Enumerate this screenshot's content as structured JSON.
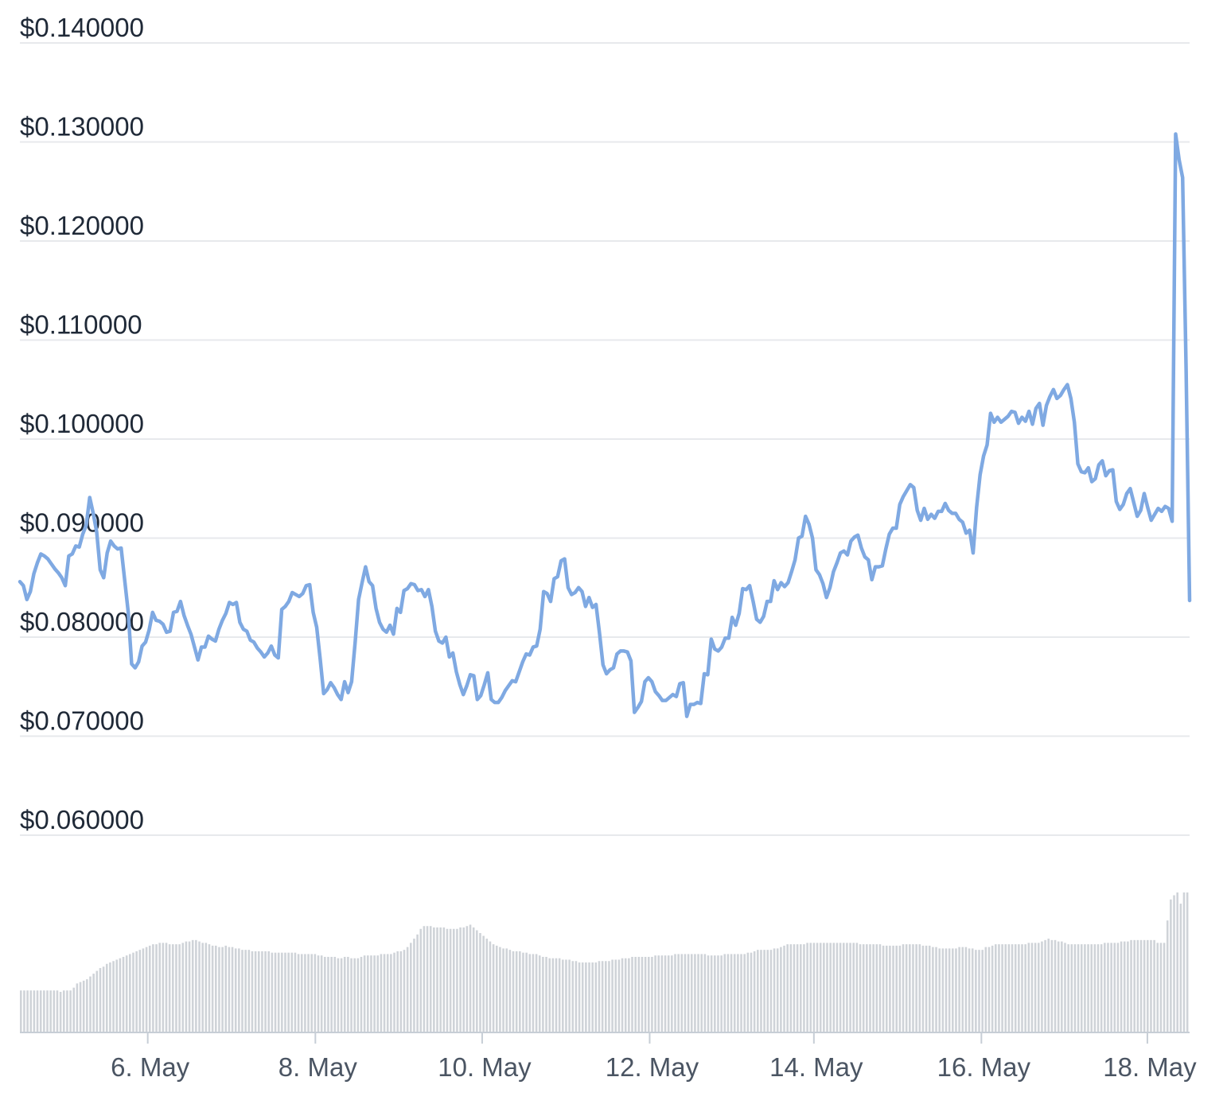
{
  "chart_data": {
    "type": "line",
    "series": [
      {
        "line_color": "#7fa9e2",
        "values": [
          0.0856,
          0.0852,
          0.0838,
          0.0846,
          0.0864,
          0.0875,
          0.0884,
          0.0882,
          0.0879,
          0.0874,
          0.0869,
          0.0865,
          0.086,
          0.0852,
          0.0882,
          0.0884,
          0.0892,
          0.0891,
          0.0904,
          0.0913,
          0.0941,
          0.0925,
          0.0906,
          0.0868,
          0.086,
          0.0885,
          0.0897,
          0.0892,
          0.0889,
          0.089,
          0.0858,
          0.0826,
          0.0773,
          0.0769,
          0.0775,
          0.0791,
          0.0795,
          0.0807,
          0.0825,
          0.0817,
          0.0816,
          0.0813,
          0.0805,
          0.0806,
          0.0825,
          0.0826,
          0.0836,
          0.0822,
          0.0812,
          0.0803,
          0.079,
          0.0777,
          0.079,
          0.079,
          0.0801,
          0.0798,
          0.0796,
          0.0808,
          0.0817,
          0.0824,
          0.0835,
          0.0833,
          0.0835,
          0.0815,
          0.0808,
          0.0806,
          0.0797,
          0.0795,
          0.0789,
          0.0785,
          0.078,
          0.0784,
          0.0791,
          0.0782,
          0.0779,
          0.0828,
          0.0831,
          0.0836,
          0.0845,
          0.0843,
          0.0841,
          0.0844,
          0.0852,
          0.0853,
          0.0825,
          0.081,
          0.0778,
          0.0743,
          0.0747,
          0.0754,
          0.0749,
          0.0742,
          0.0737,
          0.0755,
          0.0744,
          0.0755,
          0.0794,
          0.0838,
          0.0855,
          0.0871,
          0.0856,
          0.0852,
          0.0829,
          0.0815,
          0.0808,
          0.0805,
          0.0812,
          0.0803,
          0.0829,
          0.0825,
          0.0847,
          0.0849,
          0.0854,
          0.0853,
          0.0847,
          0.0848,
          0.0841,
          0.0848,
          0.0831,
          0.0806,
          0.0796,
          0.0794,
          0.08,
          0.078,
          0.0784,
          0.0765,
          0.0752,
          0.0742,
          0.0751,
          0.0762,
          0.0761,
          0.0737,
          0.0741,
          0.0752,
          0.0764,
          0.0737,
          0.0734,
          0.0734,
          0.0739,
          0.0746,
          0.0751,
          0.0756,
          0.0755,
          0.0765,
          0.0775,
          0.0783,
          0.0782,
          0.079,
          0.0791,
          0.0808,
          0.0846,
          0.0844,
          0.0836,
          0.0859,
          0.0861,
          0.0877,
          0.0879,
          0.085,
          0.0843,
          0.0845,
          0.085,
          0.0846,
          0.0831,
          0.084,
          0.083,
          0.0833,
          0.0804,
          0.0772,
          0.0763,
          0.0767,
          0.0769,
          0.0783,
          0.0786,
          0.0786,
          0.0785,
          0.0776,
          0.0724,
          0.0729,
          0.0735,
          0.0755,
          0.0759,
          0.0755,
          0.0745,
          0.0741,
          0.0736,
          0.0736,
          0.0739,
          0.0742,
          0.074,
          0.0753,
          0.0754,
          0.072,
          0.0732,
          0.0732,
          0.0734,
          0.0733,
          0.0763,
          0.0762,
          0.0798,
          0.0788,
          0.0786,
          0.079,
          0.0799,
          0.0799,
          0.082,
          0.0812,
          0.0824,
          0.0849,
          0.0848,
          0.0852,
          0.0836,
          0.0818,
          0.0815,
          0.0821,
          0.0836,
          0.0836,
          0.0857,
          0.0848,
          0.0855,
          0.0851,
          0.0855,
          0.0866,
          0.0878,
          0.09,
          0.0902,
          0.0922,
          0.0914,
          0.09,
          0.0868,
          0.0863,
          0.0854,
          0.084,
          0.085,
          0.0866,
          0.0875,
          0.0885,
          0.0887,
          0.0883,
          0.0897,
          0.0901,
          0.0903,
          0.089,
          0.0881,
          0.0878,
          0.0858,
          0.0871,
          0.0871,
          0.0872,
          0.0889,
          0.0904,
          0.091,
          0.091,
          0.0934,
          0.0942,
          0.0948,
          0.0954,
          0.0951,
          0.0928,
          0.0918,
          0.093,
          0.0919,
          0.0924,
          0.092,
          0.0927,
          0.0927,
          0.0935,
          0.0928,
          0.0925,
          0.0925,
          0.0919,
          0.0916,
          0.0905,
          0.0908,
          0.0885,
          0.0931,
          0.0964,
          0.0983,
          0.0994,
          0.1026,
          0.1017,
          0.1022,
          0.1017,
          0.102,
          0.1023,
          0.1028,
          0.1027,
          0.1016,
          0.1022,
          0.1018,
          0.1028,
          0.1015,
          0.1031,
          0.1036,
          0.1014,
          0.1034,
          0.1043,
          0.105,
          0.1041,
          0.1044,
          0.105,
          0.1055,
          0.1041,
          0.1017,
          0.0975,
          0.0967,
          0.0966,
          0.0971,
          0.0957,
          0.096,
          0.0974,
          0.0978,
          0.0963,
          0.0968,
          0.0969,
          0.0937,
          0.0929,
          0.0934,
          0.0945,
          0.095,
          0.0936,
          0.0922,
          0.0928,
          0.0945,
          0.0931,
          0.0918,
          0.0924,
          0.093,
          0.0927,
          0.0932,
          0.093,
          0.0917,
          0.1308,
          0.1282,
          0.1264,
          0.107,
          0.0837
        ]
      }
    ],
    "volume": {
      "bar_color": "#cfd3d8",
      "values": [
        0.3,
        0.3,
        0.3,
        0.3,
        0.3,
        0.3,
        0.3,
        0.3,
        0.3,
        0.3,
        0.3,
        0.3,
        0.29,
        0.3,
        0.3,
        0.3,
        0.32,
        0.35,
        0.36,
        0.37,
        0.38,
        0.4,
        0.42,
        0.44,
        0.46,
        0.47,
        0.49,
        0.5,
        0.51,
        0.52,
        0.53,
        0.54,
        0.55,
        0.56,
        0.57,
        0.58,
        0.59,
        0.6,
        0.61,
        0.62,
        0.63,
        0.63,
        0.64,
        0.64,
        0.64,
        0.63,
        0.63,
        0.63,
        0.63,
        0.64,
        0.65,
        0.65,
        0.66,
        0.66,
        0.65,
        0.64,
        0.64,
        0.63,
        0.62,
        0.62,
        0.61,
        0.61,
        0.62,
        0.61,
        0.61,
        0.6,
        0.6,
        0.59,
        0.59,
        0.59,
        0.58,
        0.58,
        0.58,
        0.58,
        0.58,
        0.58,
        0.57,
        0.57,
        0.57,
        0.57,
        0.57,
        0.57,
        0.57,
        0.57,
        0.56,
        0.56,
        0.56,
        0.56,
        0.56,
        0.56,
        0.55,
        0.55,
        0.54,
        0.54,
        0.54,
        0.54,
        0.53,
        0.53,
        0.54,
        0.54,
        0.53,
        0.53,
        0.53,
        0.54,
        0.55,
        0.55,
        0.55,
        0.55,
        0.55,
        0.56,
        0.56,
        0.56,
        0.56,
        0.57,
        0.58,
        0.58,
        0.59,
        0.61,
        0.64,
        0.67,
        0.7,
        0.74,
        0.76,
        0.76,
        0.76,
        0.75,
        0.75,
        0.75,
        0.75,
        0.74,
        0.74,
        0.74,
        0.74,
        0.75,
        0.75,
        0.76,
        0.77,
        0.75,
        0.73,
        0.71,
        0.69,
        0.67,
        0.65,
        0.63,
        0.62,
        0.61,
        0.6,
        0.6,
        0.59,
        0.58,
        0.58,
        0.58,
        0.57,
        0.57,
        0.56,
        0.56,
        0.56,
        0.55,
        0.54,
        0.54,
        0.53,
        0.53,
        0.53,
        0.53,
        0.52,
        0.52,
        0.52,
        0.51,
        0.51,
        0.5,
        0.5,
        0.5,
        0.5,
        0.5,
        0.5,
        0.51,
        0.51,
        0.51,
        0.51,
        0.52,
        0.52,
        0.52,
        0.53,
        0.53,
        0.53,
        0.54,
        0.54,
        0.54,
        0.54,
        0.54,
        0.54,
        0.54,
        0.55,
        0.55,
        0.55,
        0.55,
        0.55,
        0.55,
        0.56,
        0.56,
        0.56,
        0.56,
        0.56,
        0.56,
        0.56,
        0.56,
        0.56,
        0.56,
        0.55,
        0.55,
        0.55,
        0.55,
        0.55,
        0.56,
        0.56,
        0.56,
        0.56,
        0.56,
        0.56,
        0.56,
        0.57,
        0.57,
        0.58,
        0.59,
        0.59,
        0.59,
        0.59,
        0.59,
        0.6,
        0.6,
        0.61,
        0.62,
        0.63,
        0.63,
        0.63,
        0.63,
        0.63,
        0.63,
        0.64,
        0.64,
        0.64,
        0.64,
        0.64,
        0.64,
        0.64,
        0.64,
        0.64,
        0.64,
        0.64,
        0.64,
        0.64,
        0.64,
        0.64,
        0.64,
        0.63,
        0.63,
        0.63,
        0.63,
        0.63,
        0.63,
        0.63,
        0.62,
        0.62,
        0.62,
        0.62,
        0.62,
        0.62,
        0.63,
        0.63,
        0.63,
        0.63,
        0.63,
        0.63,
        0.62,
        0.62,
        0.62,
        0.61,
        0.61,
        0.6,
        0.6,
        0.6,
        0.6,
        0.6,
        0.6,
        0.61,
        0.61,
        0.61,
        0.6,
        0.6,
        0.59,
        0.59,
        0.59,
        0.61,
        0.61,
        0.62,
        0.63,
        0.63,
        0.63,
        0.63,
        0.63,
        0.63,
        0.63,
        0.63,
        0.63,
        0.63,
        0.64,
        0.64,
        0.64,
        0.64,
        0.65,
        0.66,
        0.67,
        0.66,
        0.66,
        0.65,
        0.65,
        0.64,
        0.63,
        0.63,
        0.63,
        0.63,
        0.63,
        0.63,
        0.63,
        0.63,
        0.63,
        0.63,
        0.63,
        0.64,
        0.64,
        0.64,
        0.64,
        0.64,
        0.65,
        0.65,
        0.65,
        0.66,
        0.66,
        0.66,
        0.66,
        0.66,
        0.66,
        0.66,
        0.66,
        0.64,
        0.64,
        0.64,
        0.8,
        0.95,
        0.98,
        1.0,
        0.92,
        1.0,
        1.0
      ]
    },
    "x_ticks": [
      {
        "label": "6. May",
        "at": 0.1093
      },
      {
        "label": "8. May",
        "at": 0.2526
      },
      {
        "label": "10. May",
        "at": 0.3952
      },
      {
        "label": "12. May",
        "at": 0.5384
      },
      {
        "label": "14. May",
        "at": 0.6788
      },
      {
        "label": "16. May",
        "at": 0.822
      },
      {
        "label": "18. May",
        "at": 0.9639
      }
    ],
    "y_ticks": [
      {
        "label": "$0.140000",
        "value": 0.14
      },
      {
        "label": "$0.130000",
        "value": 0.13
      },
      {
        "label": "$0.120000",
        "value": 0.12
      },
      {
        "label": "$0.110000",
        "value": 0.11
      },
      {
        "label": "$0.100000",
        "value": 0.1
      },
      {
        "label": "$0.090000",
        "value": 0.09
      },
      {
        "label": "$0.080000",
        "value": 0.08
      },
      {
        "label": "$0.070000",
        "value": 0.07
      },
      {
        "label": "$0.060000",
        "value": 0.06
      }
    ],
    "ylim": [
      0.06,
      0.14
    ],
    "grid": true,
    "legend": "none",
    "gridline_color": "#e7e9ec",
    "axis_color": "#c7ced6"
  }
}
